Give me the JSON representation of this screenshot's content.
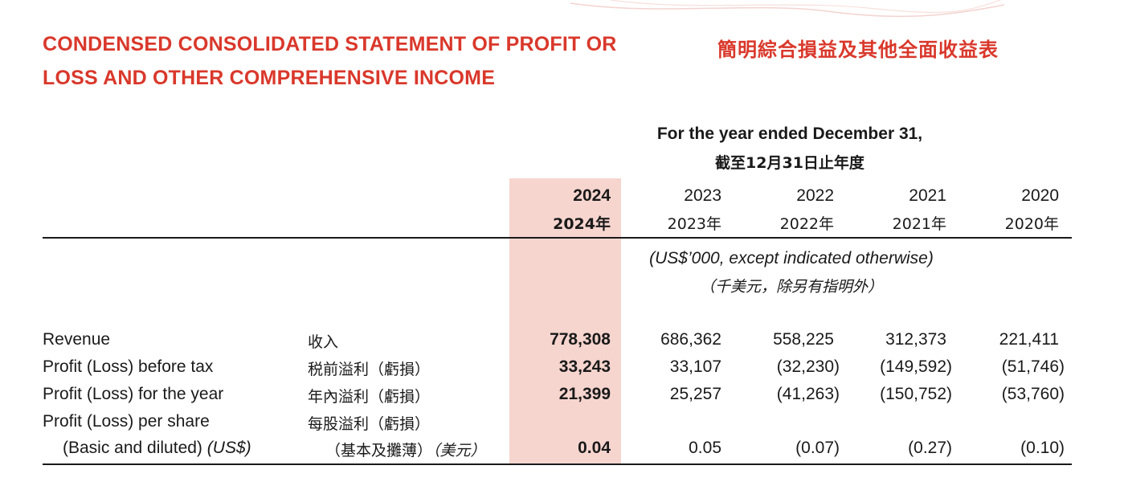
{
  "title": {
    "en_line1": "CONDENSED CONSOLIDATED STATEMENT OF PROFIT OR",
    "en_line2": "LOSS AND OTHER COMPREHENSIVE INCOME",
    "zh": "簡明綜合損益及其他全面收益表"
  },
  "header": {
    "period_en": "For the year ended December 31,",
    "period_zh": "截至12月31日止年度",
    "years": [
      {
        "en": "2024",
        "zh": "2024年"
      },
      {
        "en": "2023",
        "zh": "2023年"
      },
      {
        "en": "2022",
        "zh": "2022年"
      },
      {
        "en": "2021",
        "zh": "2021年"
      },
      {
        "en": "2020",
        "zh": "2020年"
      }
    ],
    "unit_en": "(US$’000, except indicated otherwise)",
    "unit_zh": "（千美元，除另有指明外）"
  },
  "rows": [
    {
      "label_en": "Revenue",
      "label_zh": "收入",
      "values": [
        "778,308",
        "686,362",
        "558,225",
        "312,373",
        "221,411"
      ]
    },
    {
      "label_en": "Profit (Loss) before tax",
      "label_zh": "税前溢利（虧損）",
      "values": [
        "33,243",
        "33,107",
        "(32,230)",
        "(149,592)",
        "(51,746)"
      ]
    },
    {
      "label_en": "Profit (Loss) for the year",
      "label_zh": "年內溢利（虧損）",
      "values": [
        "21,399",
        "25,257",
        "(41,263)",
        "(150,752)",
        "(53,760)"
      ]
    },
    {
      "label_en": "Profit (Loss) per share",
      "label_zh": "每股溢利（虧損）",
      "label2_en": "(Basic and diluted)",
      "label2_en_unit": "(US$)",
      "label2_zh": "（基本及攤薄）",
      "label2_zh_unit": "（美元）",
      "values": [
        "0.04",
        "0.05",
        "(0.07)",
        "(0.27)",
        "(0.10)"
      ]
    }
  ],
  "colors": {
    "title": "#d9382b",
    "highlight": "#f7d5cf",
    "text": "#1a1a1a"
  }
}
